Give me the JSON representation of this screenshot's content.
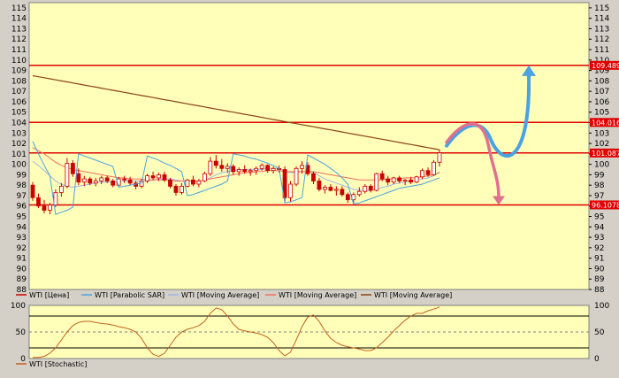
{
  "colors": {
    "plot_bg": "#ffffb9",
    "bull_candle": "#ffffff",
    "bear_candle": "#cc0000",
    "wick": "#cc0000",
    "sar": "#4aa3df",
    "ma_fast": "#a0b4e6",
    "ma_mid": "#f07060",
    "ma_slow": "#8b4513",
    "level_line": "#e00000",
    "level_tag_bg": "#e00000",
    "stochastic": "#c06020",
    "band_line": "#000000",
    "arrow_up": "#4aa3df",
    "arrow_down": "#e07090"
  },
  "chart_data": [
    {
      "type": "candlestick",
      "ylim": [
        88,
        115.5
      ],
      "yticks": [
        "88",
        "89",
        "90",
        "91",
        "92",
        "93",
        "94",
        "95",
        "96",
        "97",
        "98",
        "99",
        "100",
        "101",
        "102",
        "103",
        "104",
        "105",
        "106",
        "107",
        "108",
        "109",
        "110",
        "111",
        "112",
        "113",
        "114",
        "115"
      ],
      "grid": false,
      "legend_placement": "bottom",
      "legend": [
        {
          "label": "WTI [Цена]",
          "color": "#cc0000"
        },
        {
          "label": "WTI [Parabolic SAR]",
          "color": "#4aa3df"
        },
        {
          "label": "WTI [Moving Average]",
          "color": "#a0b4e6"
        },
        {
          "label": "WTI [Moving Average]",
          "color": "#f07060"
        },
        {
          "label": "WTI [Moving Average]",
          "color": "#8b4513"
        }
      ],
      "levels": [
        {
          "value": 109.489,
          "label": "109.489"
        },
        {
          "value": 104.016,
          "label": "104.016"
        },
        {
          "value": 101.087,
          "label": "101.087"
        },
        {
          "value": 96.1078,
          "label": "96.1078"
        }
      ],
      "ohlc": [
        [
          98.0,
          98.3,
          96.5,
          96.8
        ],
        [
          96.8,
          97.2,
          95.8,
          96.0
        ],
        [
          96.0,
          96.6,
          95.3,
          95.6
        ],
        [
          95.6,
          96.3,
          95.2,
          96.1
        ],
        [
          96.1,
          97.6,
          95.9,
          97.3
        ],
        [
          97.3,
          98.2,
          96.9,
          97.9
        ],
        [
          97.9,
          100.6,
          97.7,
          100.1
        ],
        [
          100.1,
          100.4,
          98.8,
          99.1
        ],
        [
          99.1,
          99.6,
          98.0,
          98.3
        ],
        [
          98.3,
          98.9,
          97.9,
          98.6
        ],
        [
          98.6,
          98.8,
          98.0,
          98.2
        ],
        [
          98.2,
          98.7,
          97.9,
          98.4
        ],
        [
          98.4,
          98.9,
          98.1,
          98.7
        ],
        [
          98.7,
          98.9,
          98.2,
          98.4
        ],
        [
          98.4,
          98.6,
          97.8,
          98.0
        ],
        [
          98.0,
          98.8,
          97.8,
          98.6
        ],
        [
          98.6,
          98.9,
          98.2,
          98.5
        ],
        [
          98.5,
          98.8,
          98.0,
          98.2
        ],
        [
          98.2,
          98.4,
          97.6,
          97.9
        ],
        [
          97.9,
          98.6,
          97.7,
          98.4
        ],
        [
          98.4,
          99.1,
          98.2,
          98.9
        ],
        [
          98.9,
          99.3,
          98.5,
          98.7
        ],
        [
          98.7,
          99.2,
          98.4,
          99.0
        ],
        [
          99.0,
          99.3,
          98.3,
          98.5
        ],
        [
          98.5,
          98.7,
          97.7,
          97.9
        ],
        [
          97.9,
          98.1,
          97.0,
          97.3
        ],
        [
          97.3,
          98.2,
          97.1,
          97.9
        ],
        [
          97.9,
          98.6,
          97.8,
          98.5
        ],
        [
          98.5,
          98.9,
          97.9,
          98.1
        ],
        [
          98.1,
          98.6,
          97.8,
          98.4
        ],
        [
          98.4,
          99.3,
          98.3,
          99.1
        ],
        [
          99.1,
          100.7,
          98.9,
          100.3
        ],
        [
          100.3,
          100.9,
          99.6,
          99.9
        ],
        [
          99.9,
          100.5,
          99.3,
          99.6
        ],
        [
          99.6,
          100.1,
          99.2,
          99.8
        ],
        [
          99.8,
          100.0,
          99.0,
          99.3
        ],
        [
          99.3,
          99.7,
          98.9,
          99.5
        ],
        [
          99.5,
          99.9,
          99.1,
          99.3
        ],
        [
          99.3,
          99.6,
          98.9,
          99.4
        ],
        [
          99.4,
          99.8,
          99.0,
          99.6
        ],
        [
          99.6,
          100.1,
          99.4,
          99.9
        ],
        [
          99.9,
          100.0,
          99.2,
          99.4
        ],
        [
          99.4,
          99.8,
          99.1,
          99.6
        ],
        [
          99.6,
          99.9,
          99.2,
          99.5
        ],
        [
          99.5,
          99.8,
          96.3,
          96.8
        ],
        [
          96.8,
          98.4,
          96.4,
          98.1
        ],
        [
          98.1,
          99.8,
          97.9,
          99.6
        ],
        [
          99.6,
          100.3,
          99.1,
          99.9
        ],
        [
          99.9,
          100.2,
          98.9,
          99.1
        ],
        [
          99.1,
          99.3,
          98.1,
          98.4
        ],
        [
          98.4,
          98.7,
          97.4,
          97.6
        ],
        [
          97.6,
          98.0,
          97.2,
          97.8
        ],
        [
          97.8,
          98.1,
          97.4,
          97.5
        ],
        [
          97.5,
          97.9,
          97.0,
          97.6
        ],
        [
          97.6,
          97.9,
          96.9,
          97.1
        ],
        [
          97.1,
          97.3,
          96.3,
          96.6
        ],
        [
          96.6,
          97.3,
          96.2,
          97.1
        ],
        [
          97.1,
          97.8,
          96.9,
          97.4
        ],
        [
          97.4,
          98.1,
          97.2,
          97.9
        ],
        [
          97.9,
          98.1,
          97.3,
          97.5
        ],
        [
          97.5,
          99.2,
          97.4,
          99.1
        ],
        [
          99.1,
          99.4,
          98.4,
          98.6
        ],
        [
          98.6,
          98.9,
          98.0,
          98.3
        ],
        [
          98.3,
          98.8,
          98.1,
          98.7
        ],
        [
          98.7,
          98.9,
          98.2,
          98.4
        ],
        [
          98.4,
          98.6,
          98.0,
          98.5
        ],
        [
          98.5,
          98.8,
          98.1,
          98.3
        ],
        [
          98.3,
          98.9,
          98.2,
          98.8
        ],
        [
          98.8,
          99.6,
          98.6,
          99.4
        ],
        [
          99.4,
          99.7,
          98.8,
          99.0
        ],
        [
          99.0,
          100.4,
          98.9,
          100.2
        ],
        [
          100.2,
          101.4,
          99.8,
          101.1
        ]
      ],
      "series": [
        {
          "key": "sar",
          "values": [
            102.2,
            101.0,
            99.9,
            98.9,
            95.2,
            95.4,
            95.6,
            95.9,
            101.0,
            100.8,
            100.6,
            100.4,
            100.2,
            100.0,
            99.8,
            97.8,
            97.9,
            98.0,
            98.1,
            98.2,
            100.8,
            100.6,
            100.4,
            100.1,
            99.9,
            99.6,
            99.3,
            97.0,
            97.1,
            97.3,
            97.5,
            97.7,
            97.9,
            98.1,
            98.4,
            101.0,
            100.9,
            100.8,
            100.6,
            100.5,
            100.3,
            100.1,
            99.9,
            99.6,
            96.3,
            96.4,
            96.6,
            96.8,
            100.9,
            100.6,
            100.3,
            100.0,
            99.6,
            99.2,
            98.7,
            98.1,
            96.2,
            96.3,
            96.5,
            96.7,
            96.9,
            97.1,
            97.3,
            97.5,
            97.7,
            97.8,
            97.9,
            98.0,
            98.1,
            98.3,
            98.5,
            98.7
          ]
        },
        {
          "key": "ma_fast",
          "values": [
            100.3,
            99.9,
            99.4,
            98.9,
            98.4,
            98.1,
            97.9,
            97.8,
            97.9,
            98.0,
            98.1,
            98.2,
            98.3,
            98.3,
            98.3,
            98.3,
            98.4,
            98.4,
            98.4,
            98.4,
            98.4,
            98.5,
            98.6,
            98.6,
            98.6,
            98.5,
            98.4,
            98.4,
            98.4,
            98.4,
            98.5,
            98.7,
            99.0,
            99.2,
            99.3,
            99.4,
            99.5,
            99.5,
            99.5,
            99.5,
            99.5,
            99.6,
            99.6,
            99.6,
            99.3,
            99.2,
            99.2,
            99.3,
            99.3,
            99.2,
            98.9,
            98.6,
            98.4,
            98.2,
            98.0,
            97.8,
            97.6,
            97.5,
            97.5,
            97.5,
            97.6,
            97.8,
            97.9,
            98.1,
            98.2,
            98.3,
            98.4,
            98.5,
            98.6,
            98.7,
            98.9,
            99.3
          ]
        },
        {
          "key": "ma_mid",
          "values": [
            101.6,
            101.3,
            101.0,
            100.6,
            100.2,
            99.9,
            99.7,
            99.5,
            99.4,
            99.3,
            99.2,
            99.1,
            99.0,
            98.9,
            98.8,
            98.7,
            98.7,
            98.6,
            98.6,
            98.6,
            98.5,
            98.5,
            98.5,
            98.5,
            98.5,
            98.4,
            98.4,
            98.4,
            98.4,
            98.4,
            98.5,
            98.6,
            98.7,
            98.8,
            98.9,
            99.0,
            99.1,
            99.2,
            99.2,
            99.3,
            99.3,
            99.4,
            99.4,
            99.4,
            99.3,
            99.3,
            99.3,
            99.3,
            99.3,
            99.3,
            99.2,
            99.1,
            99.0,
            98.9,
            98.8,
            98.7,
            98.6,
            98.5,
            98.5,
            98.5,
            98.5,
            98.5,
            98.6,
            98.6,
            98.6,
            98.7,
            98.7,
            98.7,
            98.8,
            98.9,
            99.0,
            99.2
          ]
        },
        {
          "key": "ma_slow",
          "values": [
            108.5,
            108.4,
            108.3,
            108.2,
            108.1,
            108.0,
            107.9,
            107.8,
            107.7,
            107.6,
            107.5,
            107.4,
            107.3,
            107.2,
            107.1,
            107.0,
            106.9,
            106.8,
            106.7,
            106.6,
            106.5,
            106.4,
            106.3,
            106.2,
            106.1,
            106.0,
            105.9,
            105.8,
            105.7,
            105.6,
            105.5,
            105.4,
            105.3,
            105.2,
            105.1,
            105.0,
            104.9,
            104.8,
            104.7,
            104.6,
            104.5,
            104.4,
            104.3,
            104.2,
            104.1,
            104.0,
            103.9,
            103.8,
            103.7,
            103.6,
            103.5,
            103.4,
            103.3,
            103.2,
            103.1,
            103.0,
            102.9,
            102.8,
            102.7,
            102.6,
            102.5,
            102.4,
            102.3,
            102.2,
            102.1,
            102.0,
            101.9,
            101.8,
            101.7,
            101.6,
            101.5,
            101.4
          ]
        }
      ],
      "scenario_arrows": [
        {
          "direction": "up",
          "target": 109.489
        },
        {
          "direction": "down",
          "target": 96.1078
        }
      ]
    },
    {
      "type": "line",
      "ylim": [
        0,
        100
      ],
      "yticks": [
        "0",
        "50",
        "100"
      ],
      "bands": [
        20,
        80
      ],
      "midline": 50,
      "legend_placement": "bottom",
      "legend": [
        {
          "label": "WTI [Stochastic]",
          "color": "#c06020"
        }
      ],
      "series": [
        {
          "key": "stoch",
          "values": [
            2,
            2,
            4,
            10,
            20,
            35,
            50,
            62,
            68,
            70,
            70,
            68,
            66,
            65,
            63,
            60,
            58,
            55,
            50,
            38,
            20,
            8,
            4,
            10,
            25,
            40,
            50,
            55,
            58,
            62,
            70,
            85,
            95,
            92,
            80,
            65,
            55,
            52,
            50,
            48,
            45,
            40,
            30,
            15,
            5,
            12,
            35,
            60,
            78,
            82,
            70,
            52,
            38,
            30,
            25,
            22,
            20,
            18,
            15,
            15,
            20,
            30,
            40,
            52,
            62,
            72,
            80,
            85,
            85,
            90,
            93,
            97
          ]
        }
      ]
    }
  ]
}
